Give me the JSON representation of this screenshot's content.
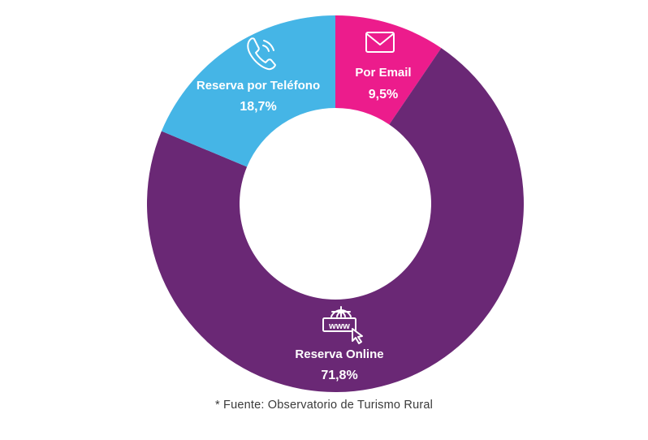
{
  "chart_data": {
    "type": "pie",
    "style": "donut",
    "segments": [
      {
        "label": "Por Email",
        "value_label": "9,5%",
        "value": 9.5,
        "color": "#ec1c8c",
        "icon": "envelope-icon",
        "text_color": "#ffffff"
      },
      {
        "label": "Reserva Online",
        "value_label": "71,8%",
        "value": 71.8,
        "color": "#6a2875",
        "icon": "www-globe-cursor-icon",
        "text_color": "#ffffff"
      },
      {
        "label": "Reserva por Teléfono",
        "value_label": "18,7%",
        "value": 18.7,
        "color": "#45b5e6",
        "icon": "phone-icon",
        "text_color": "#ffffff"
      }
    ],
    "legend": "none"
  },
  "footer": {
    "source": "* Fuente: Observatorio de Turismo Rural"
  }
}
